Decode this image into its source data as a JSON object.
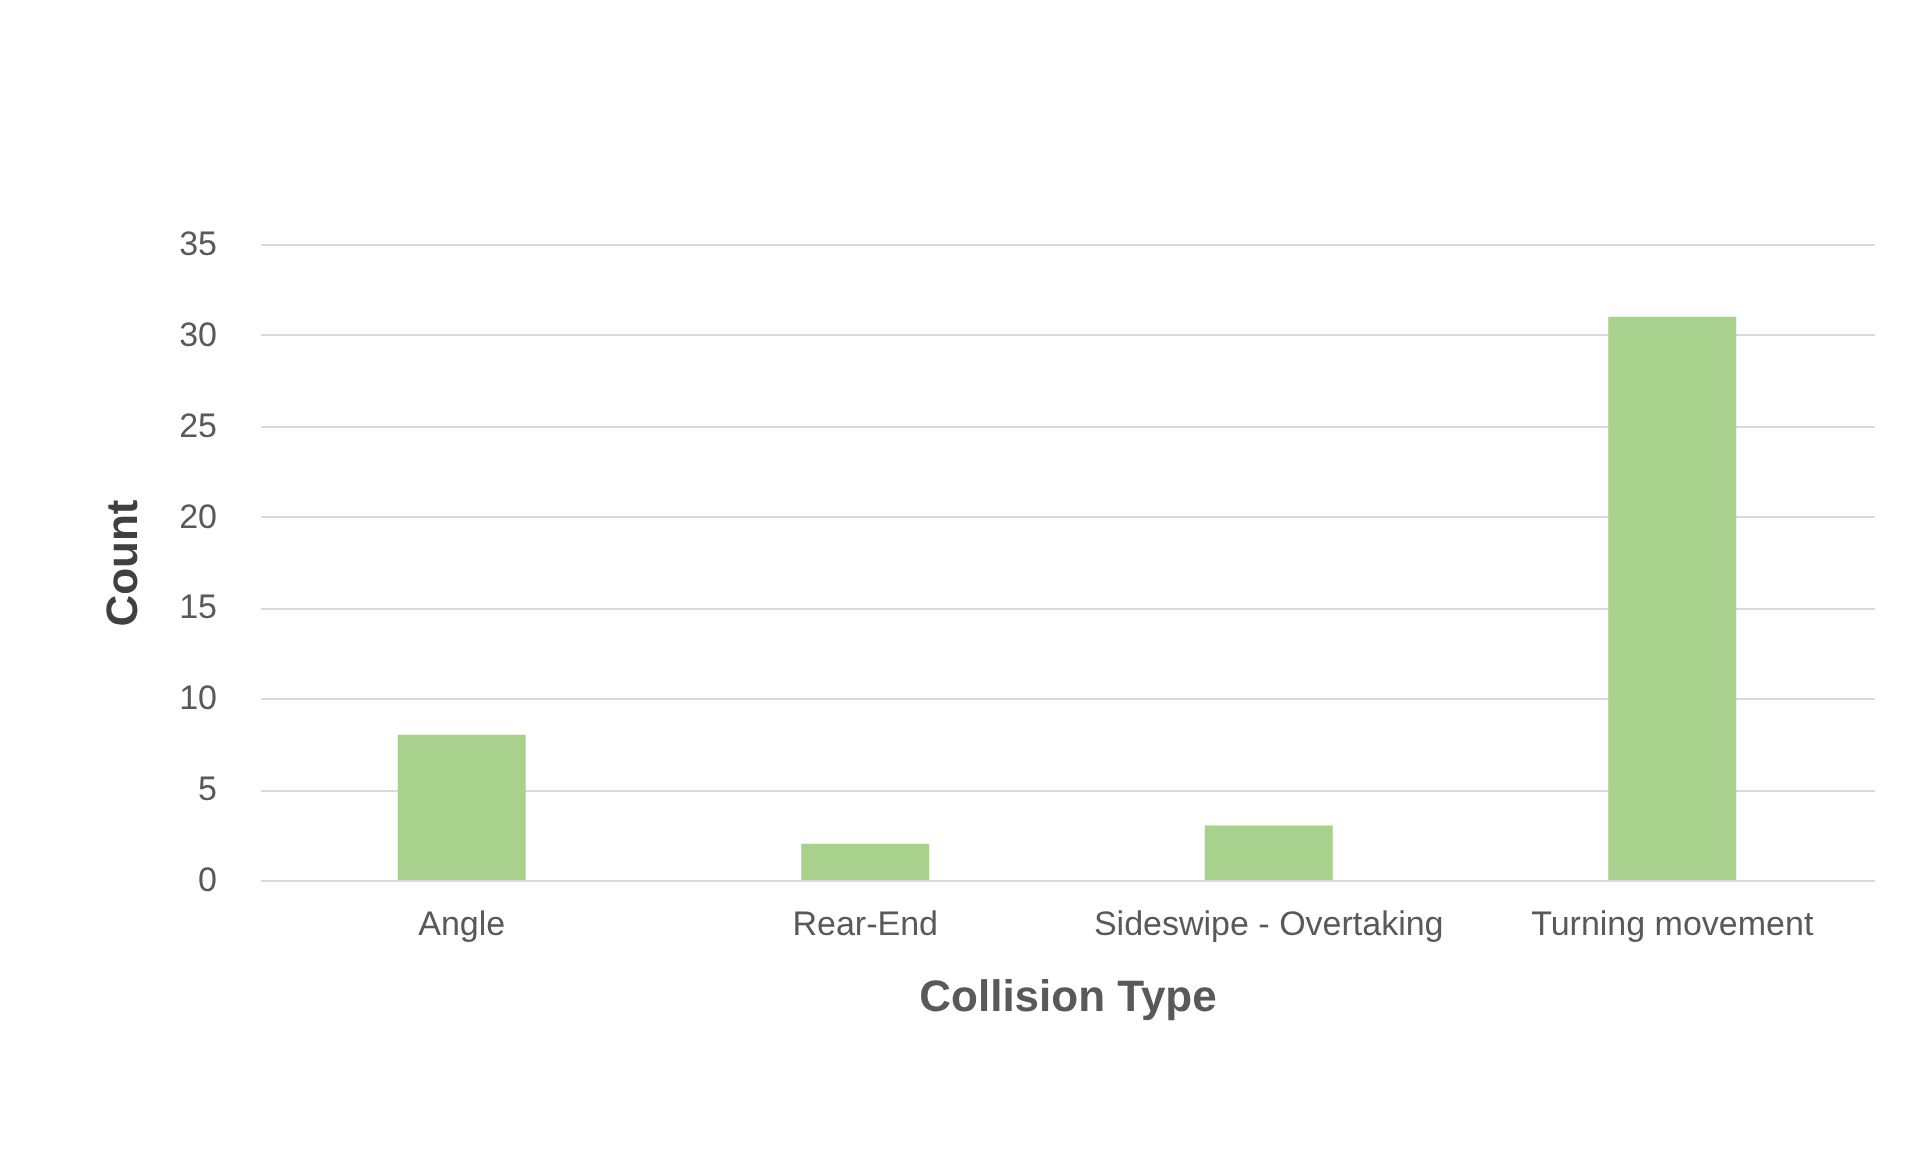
{
  "chart_data": {
    "type": "bar",
    "xlabel": "Collision Type",
    "ylabel": "Count",
    "categories": [
      "Angle",
      "Rear-End",
      "Sideswipe - Overtaking",
      "Turning movement"
    ],
    "values": [
      8,
      2,
      3,
      31
    ],
    "color": "#a9d18e",
    "ylim": [
      0,
      35
    ],
    "yticks": [
      0,
      5,
      10,
      15,
      20,
      25,
      30,
      35
    ],
    "grid": "y"
  }
}
